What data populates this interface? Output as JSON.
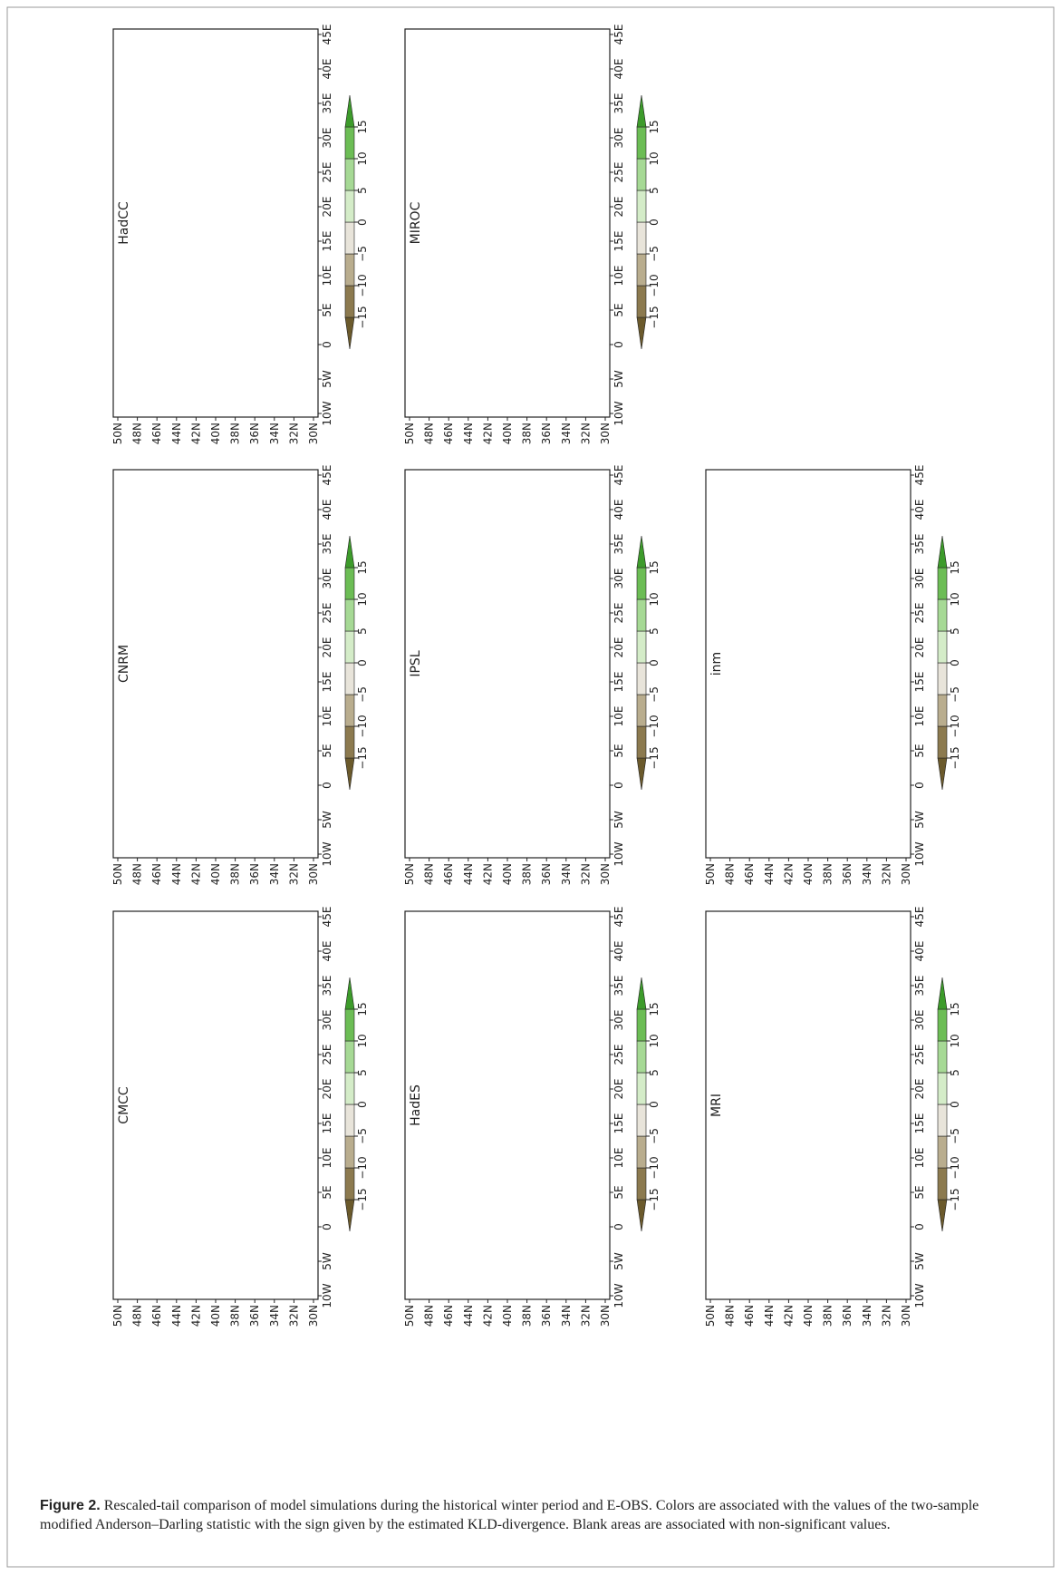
{
  "figure": {
    "panels": [
      {
        "title": "HadCC"
      },
      {
        "title": "MIROC"
      },
      {
        "title": "CNRM"
      },
      {
        "title": "IPSL"
      },
      {
        "title": "inm"
      },
      {
        "title": "CMCC"
      },
      {
        "title": "HadES"
      },
      {
        "title": "MRI"
      }
    ],
    "lat_ticks": [
      "50N",
      "48N",
      "46N",
      "44N",
      "42N",
      "40N",
      "38N",
      "36N",
      "34N",
      "32N",
      "30N"
    ],
    "lon_ticks": [
      "10W",
      "5W",
      "0",
      "5E",
      "10E",
      "15E",
      "20E",
      "25E",
      "30E",
      "35E",
      "40E",
      "45E"
    ],
    "colorbar": {
      "ticks": [
        "−15",
        "−10",
        "−5",
        "0",
        "5",
        "10",
        "15"
      ],
      "colors": [
        "#6b5a2c",
        "#8c7a4f",
        "#b9ad8e",
        "#e8e4da",
        "#d4ecc8",
        "#a6d995",
        "#6cbd55",
        "#3d9b2b"
      ]
    }
  },
  "caption": {
    "label": "Figure 2.",
    "text": "Rescaled-tail comparison of model simulations during the historical winter period and E-OBS. Colors are associated with the values of the two-sample modified Anderson–Darling statistic with the sign given by the estimated KLD-divergence. Blank areas are associated with non-significant values."
  }
}
